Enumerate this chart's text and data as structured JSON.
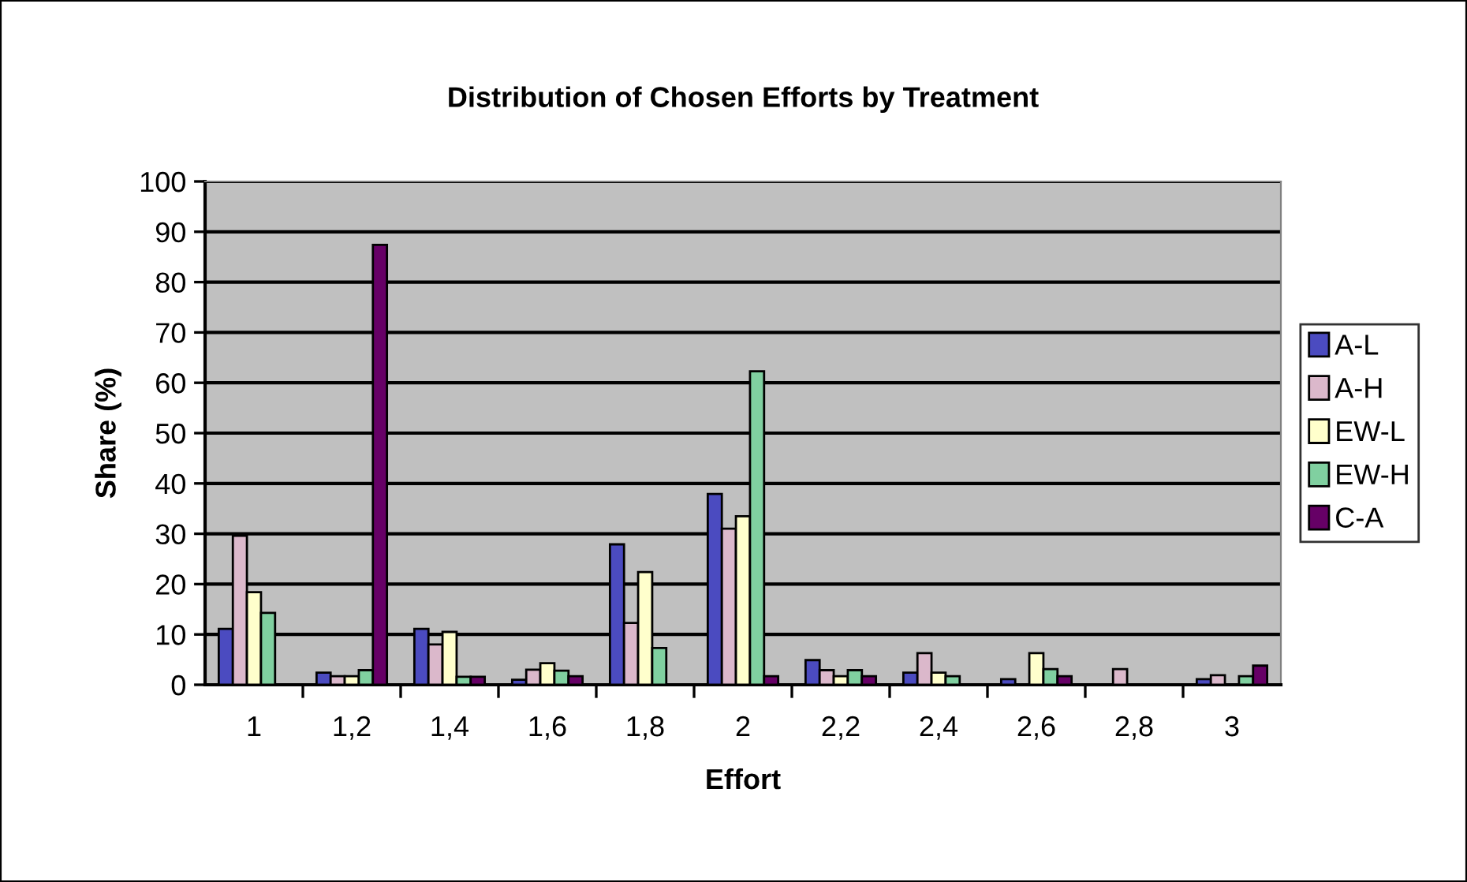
{
  "chart_data": {
    "type": "bar",
    "title": "Distribution of Chosen Efforts by Treatment",
    "xlabel": "Effort",
    "ylabel": "Share (%)",
    "categories": [
      "1",
      "1,2",
      "1,4",
      "1,6",
      "1,8",
      "2",
      "2,2",
      "2,4",
      "2,6",
      "2,8",
      "3"
    ],
    "series": [
      {
        "name": "A-L",
        "color": "#4b4bc0",
        "values": [
          11.1,
          2.4,
          11.1,
          1.0,
          27.9,
          37.9,
          4.9,
          2.4,
          1.1,
          null,
          1.1
        ]
      },
      {
        "name": "A-H",
        "color": "#dbb8cb",
        "values": [
          29.6,
          1.7,
          8.0,
          3.0,
          12.3,
          31.0,
          2.9,
          6.3,
          null,
          3.1,
          1.9
        ]
      },
      {
        "name": "EW-L",
        "color": "#ffffcc",
        "values": [
          18.4,
          1.7,
          10.5,
          4.3,
          22.4,
          33.5,
          1.7,
          2.4,
          6.3,
          null,
          null
        ]
      },
      {
        "name": "EW-H",
        "color": "#80d0a0",
        "values": [
          14.3,
          2.9,
          1.6,
          2.8,
          7.3,
          62.3,
          2.9,
          1.7,
          3.1,
          null,
          1.7
        ]
      },
      {
        "name": "C-A",
        "color": "#660066",
        "values": [
          null,
          87.4,
          1.6,
          1.7,
          null,
          1.7,
          1.7,
          null,
          1.7,
          null,
          3.8
        ]
      }
    ],
    "ylim": [
      0,
      100
    ],
    "yticks": [
      0,
      10,
      20,
      30,
      40,
      50,
      60,
      70,
      80,
      90,
      100
    ],
    "grid": "y",
    "legend": "right"
  }
}
